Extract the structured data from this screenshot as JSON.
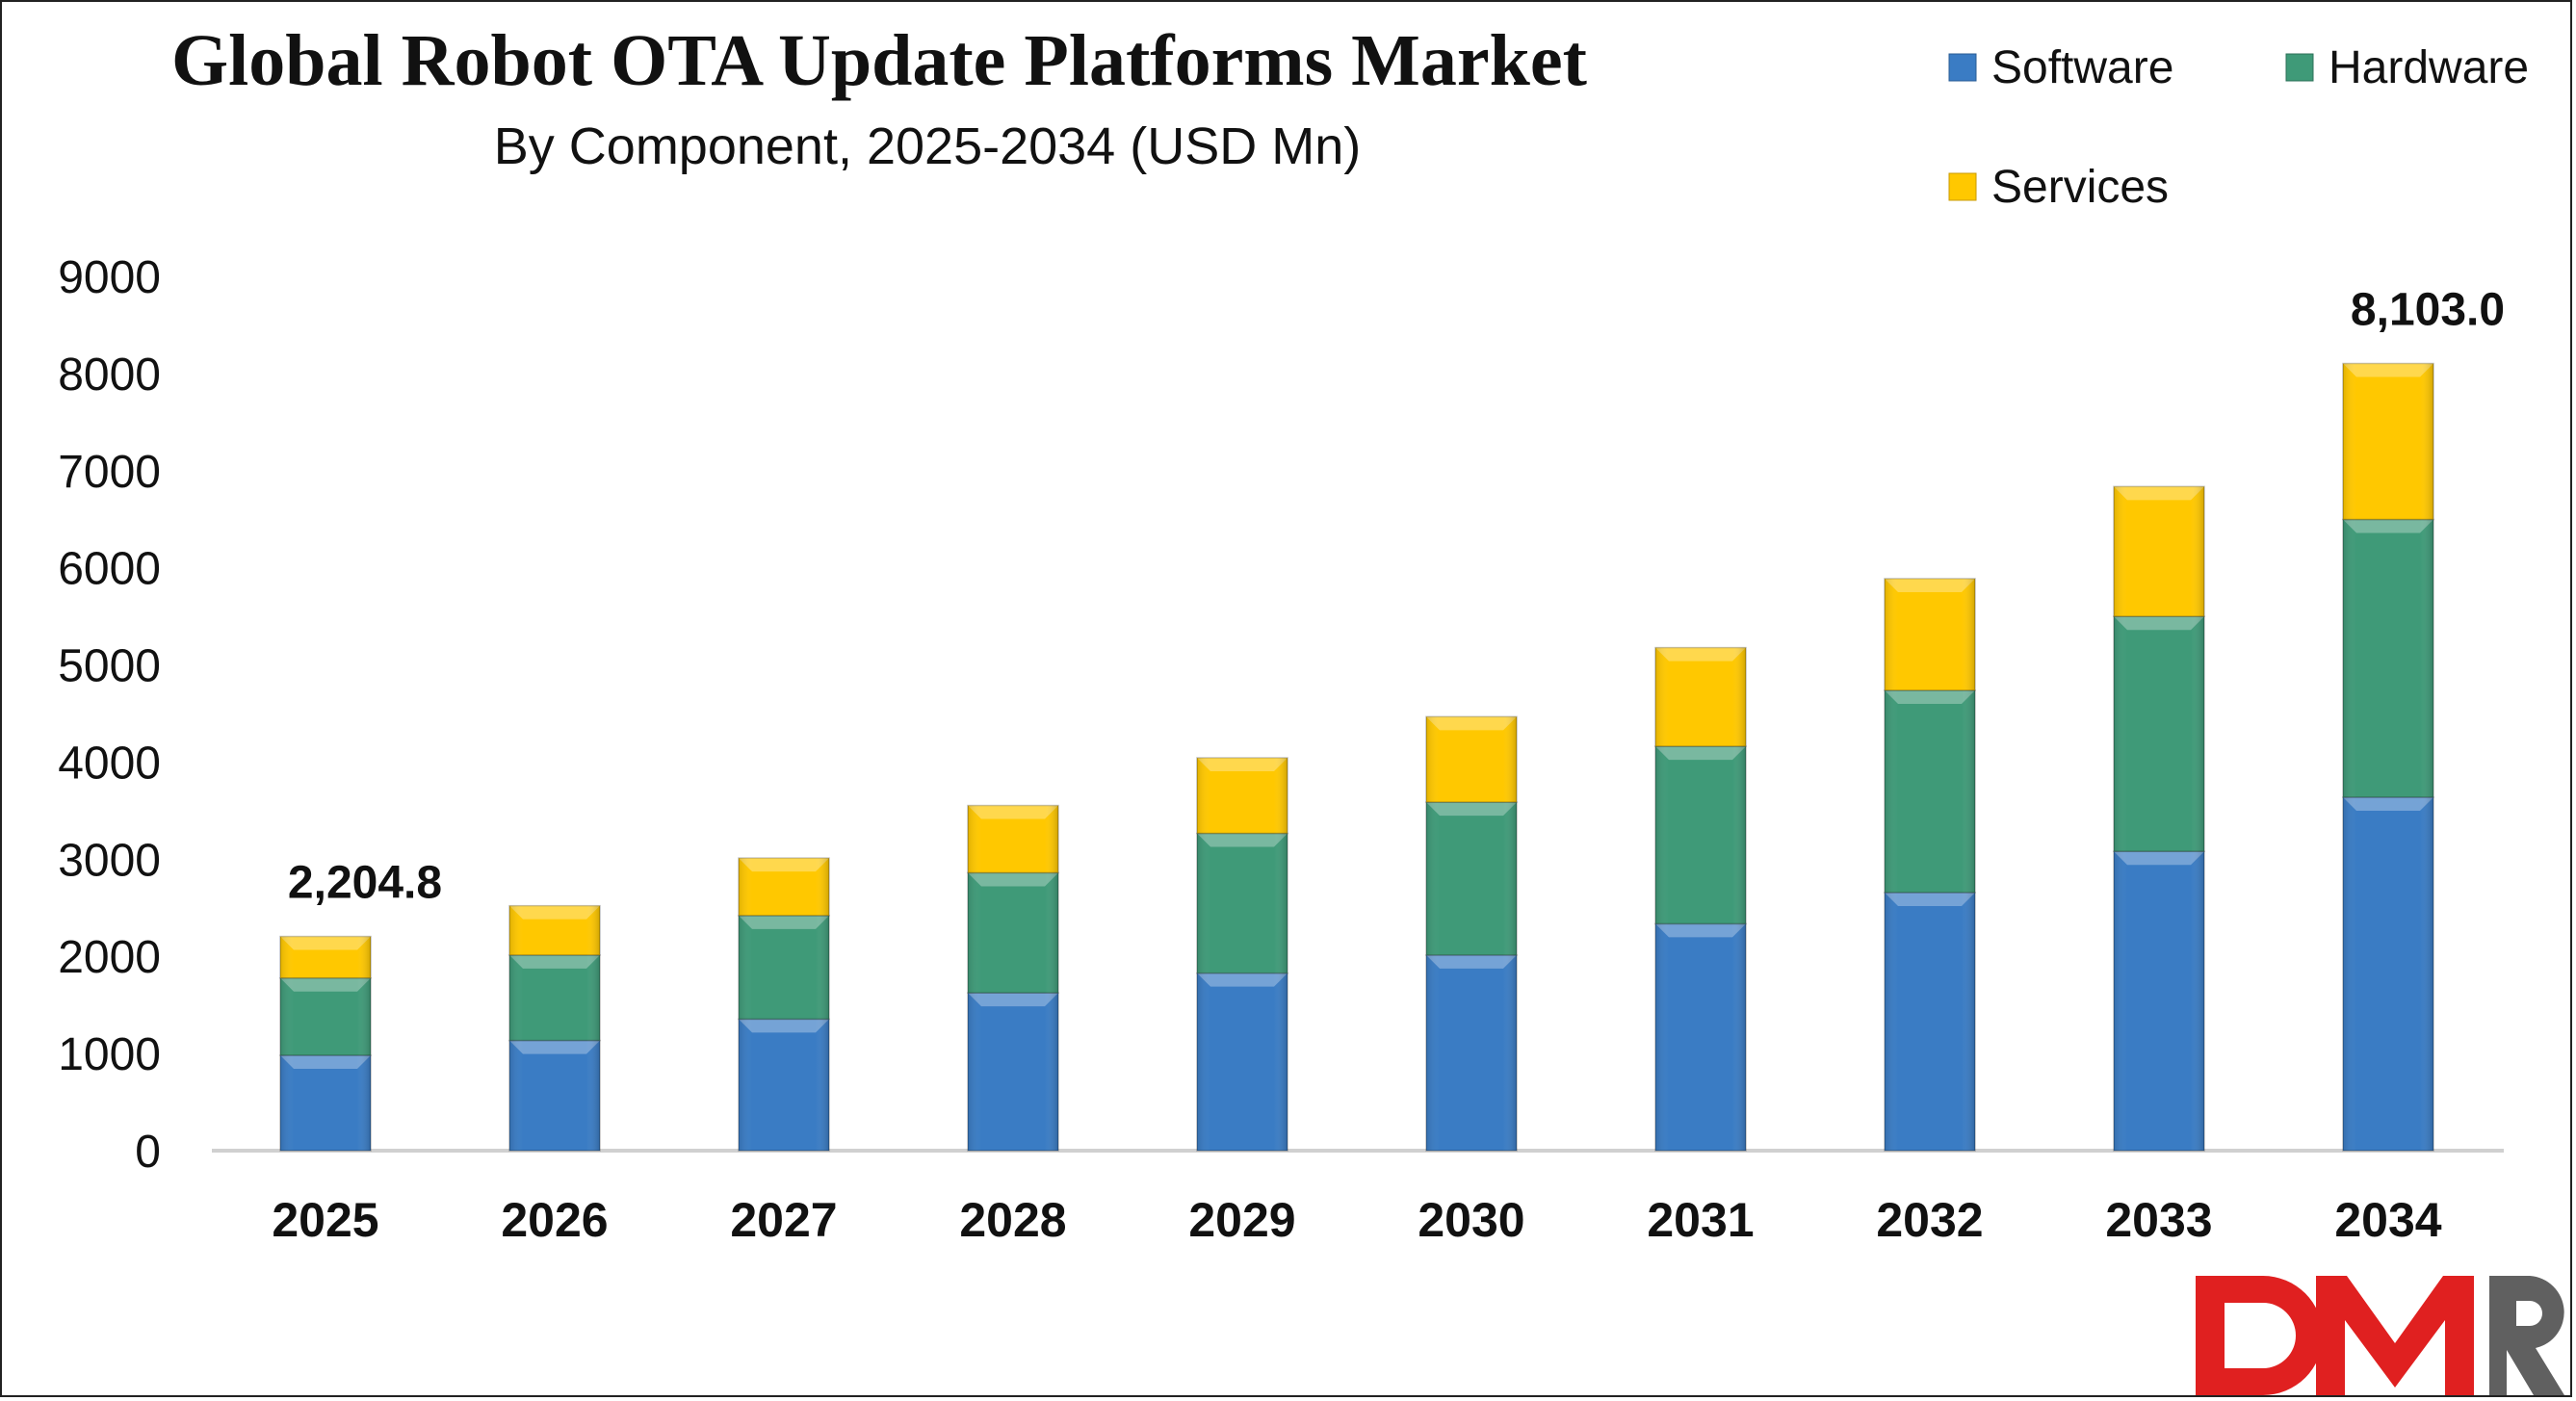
{
  "chart_data": {
    "type": "bar",
    "stacked": true,
    "title": "Global Robot OTA Update Platforms Market",
    "subtitle": "By Component, 2025-2034 (USD Mn)",
    "xlabel": "",
    "ylabel": "",
    "ylim": [
      0,
      9000
    ],
    "yticks": [
      0,
      1000,
      2000,
      3000,
      4000,
      5000,
      6000,
      7000,
      8000,
      9000
    ],
    "grid": false,
    "legend_position": "top-right",
    "categories": [
      "2025",
      "2026",
      "2027",
      "2028",
      "2029",
      "2030",
      "2031",
      "2032",
      "2033",
      "2034"
    ],
    "series": [
      {
        "name": "Software",
        "color": "#3a7cc4",
        "values": [
          981,
          1134,
          1354,
          1624,
          1827,
          2013,
          2335,
          2657,
          3080,
          3638
        ]
      },
      {
        "name": "Hardware",
        "color": "#3f9a78",
        "values": [
          796,
          879,
          1066,
          1236,
          1439,
          1574,
          1827,
          2081,
          2419,
          2859
        ]
      },
      {
        "name": "Services",
        "color": "#ffc800",
        "values": [
          427.8,
          508,
          592,
          693,
          778,
          880,
          1016,
          1150,
          1337,
          1606
        ]
      }
    ],
    "data_labels": [
      {
        "category": "2025",
        "text": "2,204.8"
      },
      {
        "category": "2034",
        "text": "8,103.0"
      }
    ]
  },
  "logo": {
    "text": "DMR",
    "colors": [
      "#e02020",
      "#555555"
    ]
  }
}
